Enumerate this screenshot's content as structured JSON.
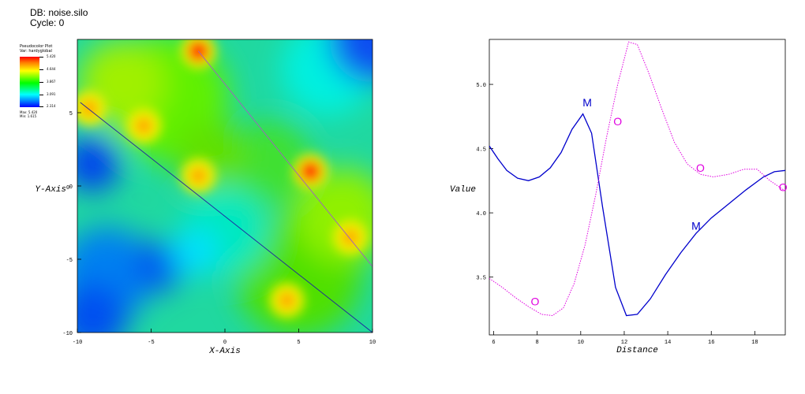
{
  "header": {
    "db_line": "DB: noise.silo",
    "cycle_line": "Cycle: 0"
  },
  "legend": {
    "title": "Pseudocolor Plot",
    "var_line": "Var: hardyglobal",
    "ticks": [
      "5.420",
      "4.644",
      "3.867",
      "3.091",
      "2.314"
    ],
    "max_line": "Max: 5.420",
    "min_line": "Min: 1.615"
  },
  "pseudocolor_plot": {
    "xlabel": "X-Axis",
    "ylabel": "Y-Axis",
    "ylabel_suffix": "0",
    "xticks": [
      {
        "value": -10,
        "label": "-10"
      },
      {
        "value": -5,
        "label": "-5"
      },
      {
        "value": 0,
        "label": "0"
      },
      {
        "value": 5,
        "label": "5"
      },
      {
        "value": 10,
        "label": "10"
      }
    ],
    "yticks": [
      {
        "value": -10,
        "label": "-10"
      },
      {
        "value": -5,
        "label": "-5"
      },
      {
        "value": 0,
        "label": "0"
      },
      {
        "value": 5,
        "label": "5"
      }
    ],
    "xlim": [
      -10,
      10
    ],
    "ylim": [
      -10,
      10
    ],
    "colors": {
      "min": "#0000ff",
      "max": "#ff0000",
      "lineout_1": "#2020a0",
      "lineout_2": "#a060c0"
    },
    "hot_spots": [
      {
        "x": -1.8,
        "y": 9.2,
        "value": 5.4
      },
      {
        "x": -9.2,
        "y": 5.3,
        "value": 4.6
      },
      {
        "x": -5.5,
        "y": 4.1,
        "value": 4.4
      },
      {
        "x": -1.8,
        "y": 0.7,
        "value": 4.3
      },
      {
        "x": 5.8,
        "y": 1.0,
        "value": 5.3
      },
      {
        "x": 4.2,
        "y": -7.8,
        "value": 4.6
      },
      {
        "x": 8.5,
        "y": -3.5,
        "value": 4.1
      }
    ],
    "cold_spots": [
      {
        "x": -9.2,
        "y": 1.5,
        "value": 1.9
      },
      {
        "x": -4.5,
        "y": -5.5,
        "value": 2.1
      },
      {
        "x": 10,
        "y": 10,
        "value": 2.0
      },
      {
        "x": -10,
        "y": -9,
        "value": 2.0
      }
    ],
    "lineouts": [
      {
        "x1": -9.8,
        "y1": 5.7,
        "x2": 10,
        "y2": -10
      },
      {
        "x1": -1.8,
        "y1": 9.2,
        "x2": 10,
        "y2": -5.5
      }
    ]
  },
  "chart_data": {
    "type": "line",
    "xlabel": "Distance",
    "ylabel": "Value",
    "xlim": [
      5.8,
      19.4
    ],
    "ylim": [
      3.05,
      5.35
    ],
    "xticks": [
      {
        "value": 6,
        "label": "6"
      },
      {
        "value": 8,
        "label": "8"
      },
      {
        "value": 10,
        "label": "10"
      },
      {
        "value": 12,
        "label": "12"
      },
      {
        "value": 14,
        "label": "14"
      },
      {
        "value": 16,
        "label": "16"
      },
      {
        "value": 18,
        "label": "18"
      }
    ],
    "yticks": [
      {
        "value": 3.5,
        "label": "3.5"
      },
      {
        "value": 4.0,
        "label": "4.0"
      },
      {
        "value": 4.5,
        "label": "4.5"
      },
      {
        "value": 5.0,
        "label": "5.0"
      }
    ],
    "series": [
      {
        "marker": "M",
        "color": "#0000cc",
        "style": "solid",
        "markers": [
          {
            "x": 10.3,
            "y": 4.83
          },
          {
            "x": 15.3,
            "y": 3.87
          }
        ],
        "points": [
          [
            5.8,
            4.52
          ],
          [
            6.2,
            4.42
          ],
          [
            6.6,
            4.33
          ],
          [
            7.1,
            4.27
          ],
          [
            7.6,
            4.25
          ],
          [
            8.1,
            4.28
          ],
          [
            8.6,
            4.35
          ],
          [
            9.1,
            4.47
          ],
          [
            9.6,
            4.65
          ],
          [
            10.1,
            4.77
          ],
          [
            10.5,
            4.62
          ],
          [
            11.0,
            4.05
          ],
          [
            11.6,
            3.42
          ],
          [
            12.1,
            3.2
          ],
          [
            12.6,
            3.21
          ],
          [
            13.2,
            3.33
          ],
          [
            13.9,
            3.52
          ],
          [
            14.6,
            3.69
          ],
          [
            15.3,
            3.84
          ],
          [
            16.0,
            3.96
          ],
          [
            16.8,
            4.07
          ],
          [
            17.6,
            4.18
          ],
          [
            18.4,
            4.28
          ],
          [
            18.9,
            4.32
          ],
          [
            19.4,
            4.33
          ]
        ]
      },
      {
        "marker": "O",
        "color": "#e000e0",
        "style": "dotted",
        "markers": [
          {
            "x": 11.7,
            "y": 4.68
          },
          {
            "x": 15.5,
            "y": 4.32
          },
          {
            "x": 19.3,
            "y": 4.17
          },
          {
            "x": 7.9,
            "y": 3.28
          }
        ],
        "points": [
          [
            5.8,
            3.49
          ],
          [
            6.4,
            3.42
          ],
          [
            7.0,
            3.34
          ],
          [
            7.6,
            3.27
          ],
          [
            8.2,
            3.21
          ],
          [
            8.7,
            3.2
          ],
          [
            9.2,
            3.26
          ],
          [
            9.7,
            3.45
          ],
          [
            10.2,
            3.75
          ],
          [
            10.7,
            4.15
          ],
          [
            11.2,
            4.6
          ],
          [
            11.7,
            5.0
          ],
          [
            12.2,
            5.33
          ],
          [
            12.6,
            5.31
          ],
          [
            13.1,
            5.1
          ],
          [
            13.7,
            4.82
          ],
          [
            14.3,
            4.55
          ],
          [
            14.9,
            4.38
          ],
          [
            15.5,
            4.3
          ],
          [
            16.1,
            4.28
          ],
          [
            16.8,
            4.3
          ],
          [
            17.5,
            4.34
          ],
          [
            18.1,
            4.34
          ],
          [
            18.7,
            4.25
          ],
          [
            19.4,
            4.17
          ]
        ]
      }
    ]
  }
}
